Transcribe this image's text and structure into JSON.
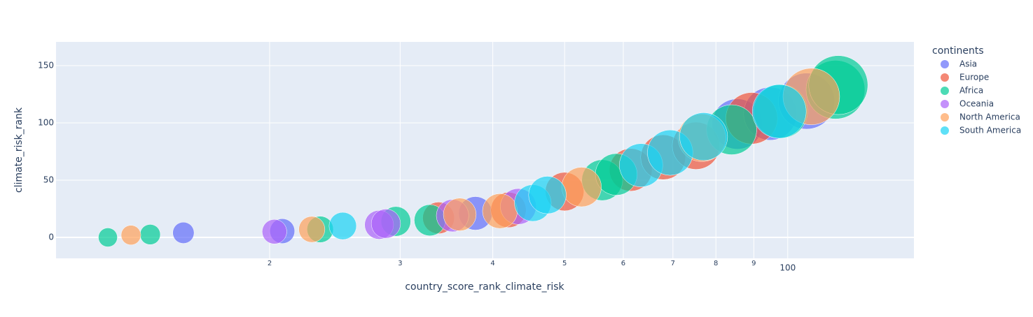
{
  "chart_data": {
    "type": "bubble",
    "x_label": "country_score_rank_climate_risk",
    "y_label": "climate_risk_rank",
    "legend_title": "continents",
    "legend_position": "outside-right",
    "xlog": true,
    "grid": true,
    "xlim": [
      10.3,
      148
    ],
    "ylim": [
      -18.3,
      170.7
    ],
    "xticks": [
      {
        "value": 20,
        "label": "2"
      },
      {
        "value": 30,
        "label": "3"
      },
      {
        "value": 40,
        "label": "4"
      },
      {
        "value": 50,
        "label": "5"
      },
      {
        "value": 60,
        "label": "6"
      },
      {
        "value": 70,
        "label": "7"
      },
      {
        "value": 80,
        "label": "8"
      },
      {
        "value": 90,
        "label": "9"
      },
      100
    ],
    "yticks": [
      0,
      50,
      100,
      150
    ],
    "series": [
      {
        "name": "Asia",
        "color": "#636efa",
        "x": [
          15.3,
          20.8,
          37.9,
          85.5,
          94.7,
          106
        ],
        "y": [
          4,
          5.5,
          21,
          99,
          108,
          119
        ],
        "sizes": [
          15.3,
          20.8,
          37.9,
          85.5,
          94.7,
          106
        ]
      },
      {
        "name": "Europe",
        "color": "#EF553B",
        "x": [
          33.8,
          42,
          50,
          61.4,
          67.9,
          75.2,
          89.4
        ],
        "y": [
          17,
          24,
          40,
          59,
          70,
          80,
          104
        ],
        "sizes": [
          33.8,
          42,
          50,
          61.4,
          67.9,
          75.2,
          89.4
        ]
      },
      {
        "name": "Africa",
        "color": "#00cc96",
        "x": [
          12.1,
          13.8,
          23.4,
          29.6,
          32.9,
          56.2,
          58.7,
          84,
          97.8,
          116,
          117
        ],
        "y": [
          0,
          2.5,
          7,
          14,
          15,
          50,
          55,
          94,
          110,
          129,
          133
        ],
        "sizes": [
          12.1,
          13.8,
          23.4,
          29.6,
          32.9,
          56.2,
          58.7,
          84,
          97.8,
          116,
          117
        ]
      },
      {
        "name": "Oceania",
        "color": "#ab63fa",
        "x": [
          20.3,
          28.1,
          28.7,
          35.3,
          43.3
        ],
        "y": [
          5,
          11,
          12,
          19,
          27
        ],
        "sizes": [
          20.3,
          28.1,
          28.7,
          35.3,
          43.3
        ]
      },
      {
        "name": "North America",
        "color": "#FFA15A",
        "x": [
          13,
          22.8,
          36.1,
          40.9,
          52.7,
          76.6,
          107.6
        ],
        "y": [
          2,
          7,
          20,
          23,
          44,
          87,
          123
        ],
        "sizes": [
          13,
          22.8,
          36.1,
          40.9,
          52.7,
          76.6,
          107.6
        ]
      },
      {
        "name": "South America",
        "color": "#19d3f3",
        "x": [
          25.1,
          45.3,
          47.4,
          63.4,
          69.4,
          77,
          97.4
        ],
        "y": [
          10,
          30,
          37,
          63,
          74,
          88,
          110
        ],
        "sizes": [
          25.1,
          45.3,
          47.4,
          63.4,
          69.4,
          77,
          97.4
        ]
      }
    ]
  }
}
